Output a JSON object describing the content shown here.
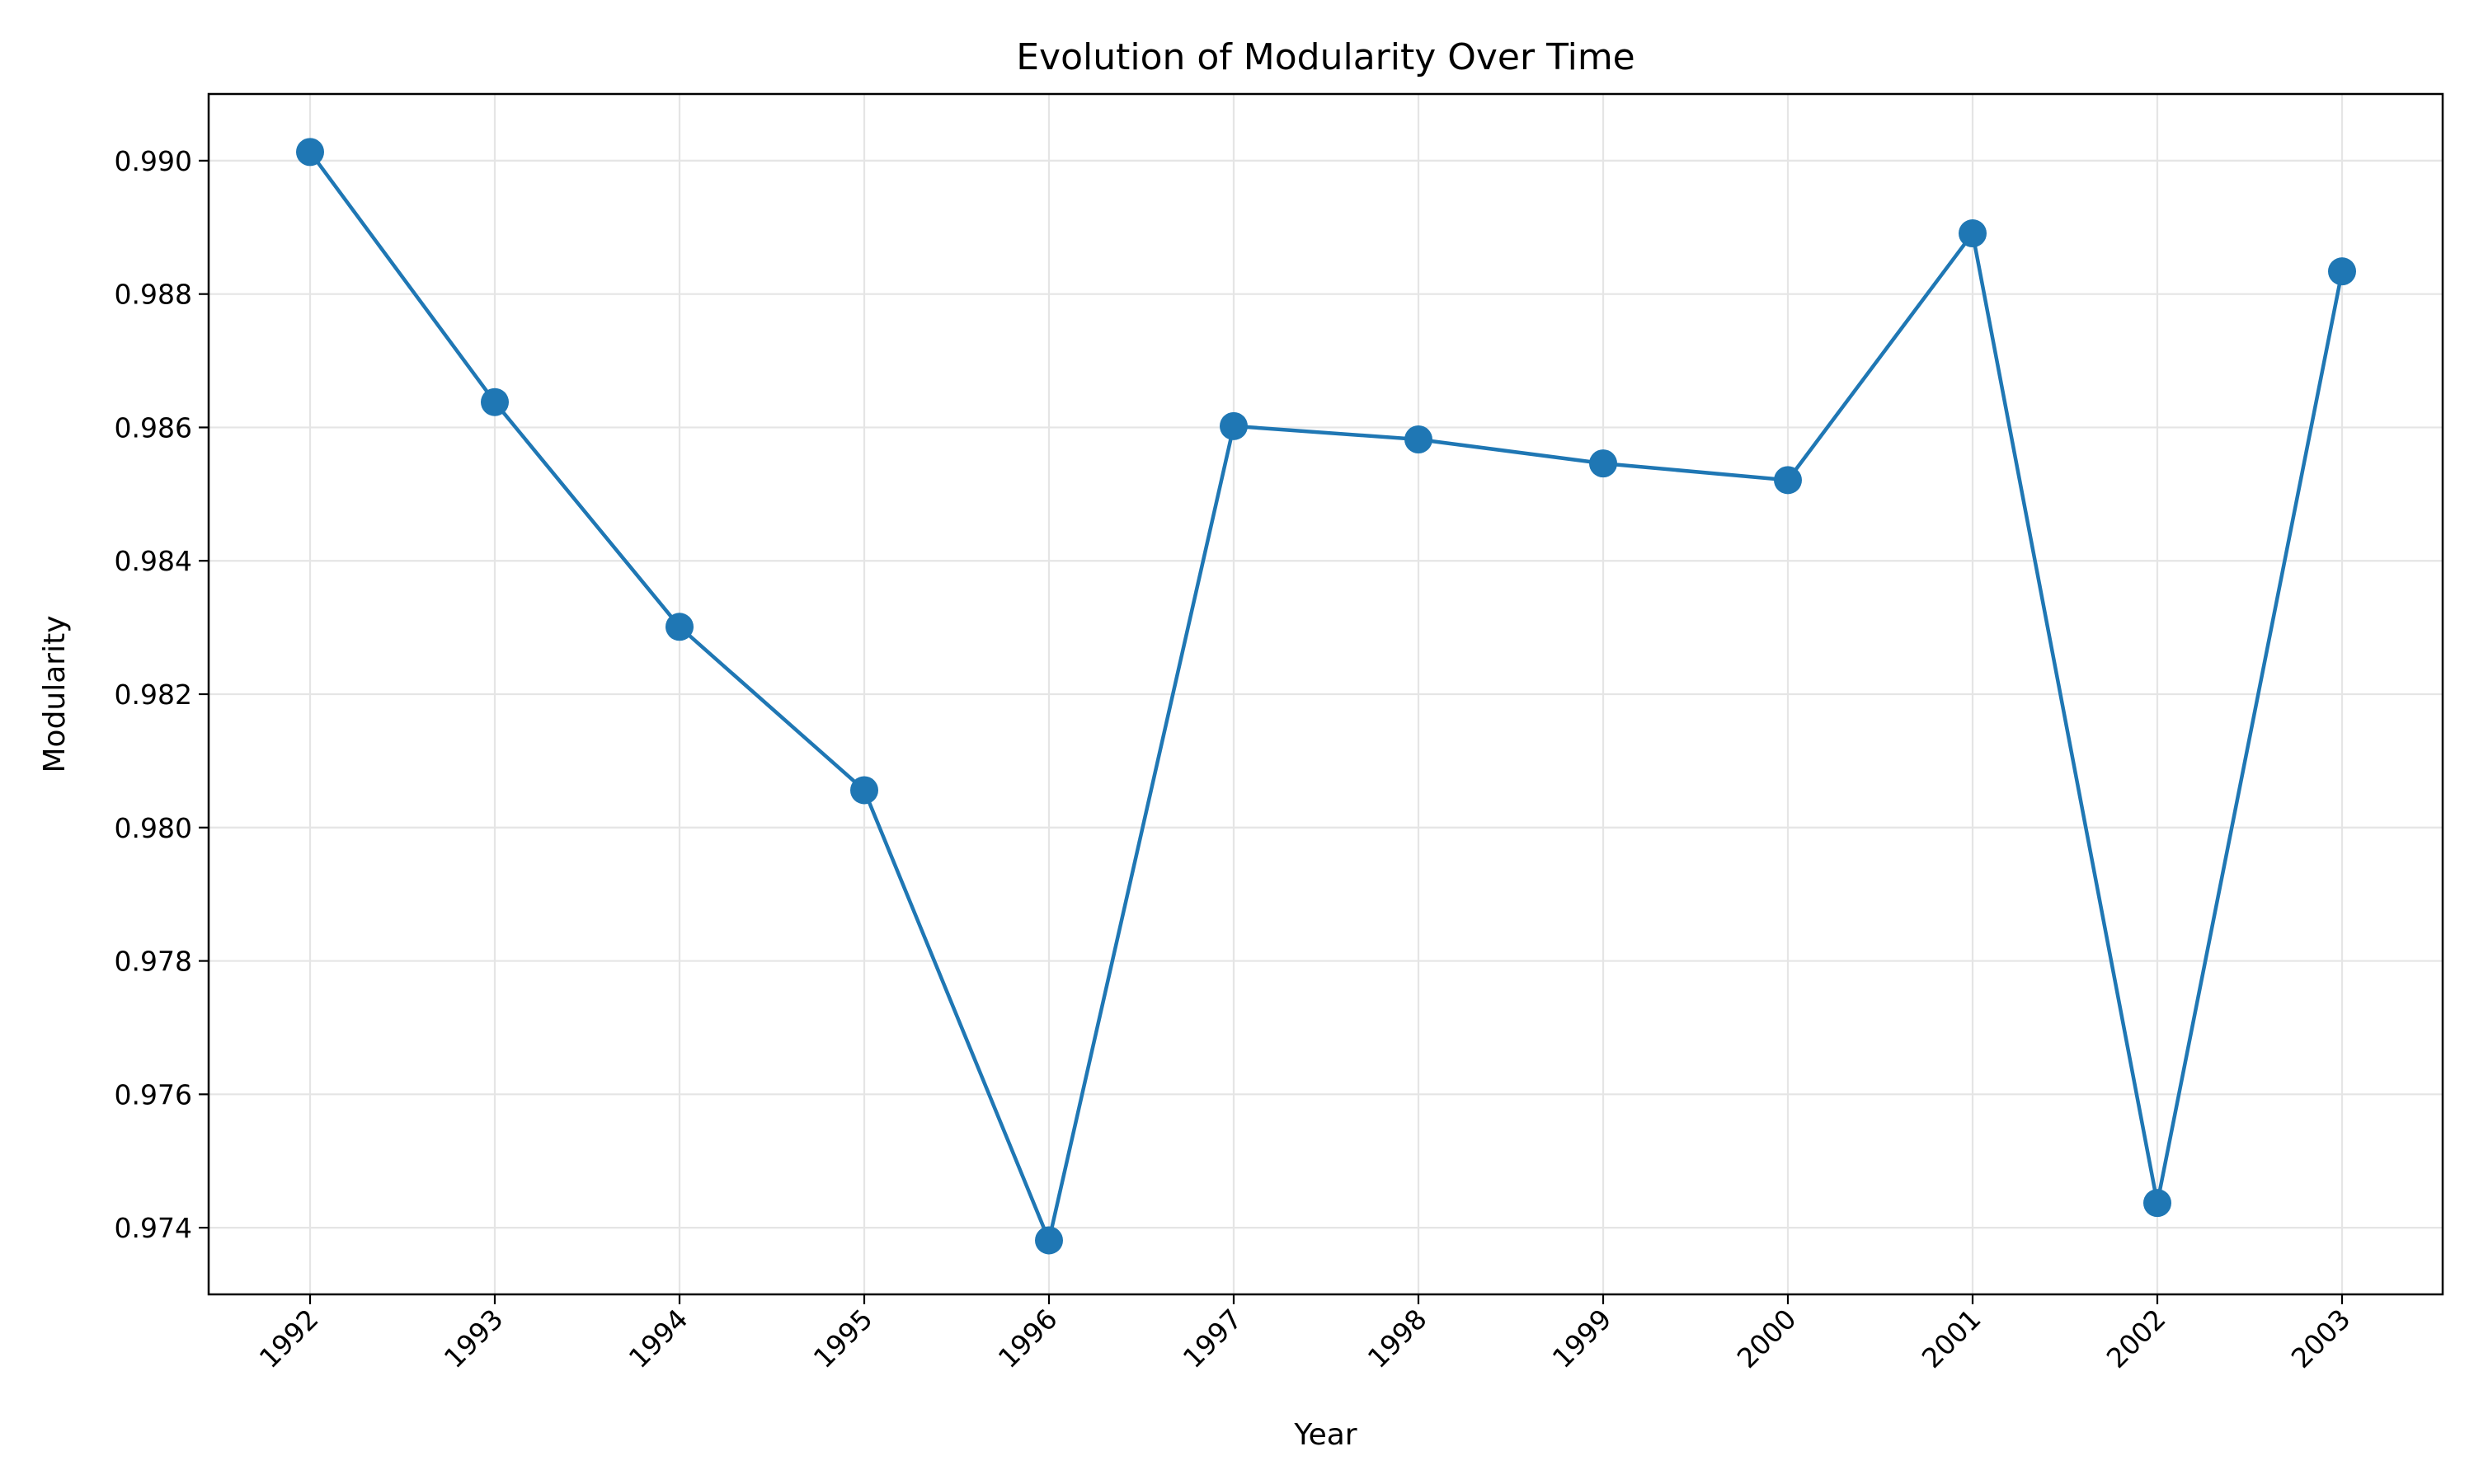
{
  "chart_data": {
    "type": "line",
    "title": "Evolution of Modularity Over Time",
    "xlabel": "Year",
    "ylabel": "Modularity",
    "categories": [
      "1992",
      "1993",
      "1994",
      "1995",
      "1996",
      "1997",
      "1998",
      "1999",
      "2000",
      "2001",
      "2002",
      "2003"
    ],
    "series": [
      {
        "values": [
          0.99013,
          0.98638,
          0.98301,
          0.98056,
          0.97381,
          0.98602,
          0.98582,
          0.98546,
          0.98521,
          0.98891,
          0.97437,
          0.98834
        ],
        "color": "#1f77b4",
        "marker": "circle"
      }
    ],
    "ylim": [
      0.973,
      0.991
    ],
    "yticks": [
      "0.974",
      "0.976",
      "0.978",
      "0.980",
      "0.982",
      "0.984",
      "0.986",
      "0.988",
      "0.990"
    ],
    "grid": true,
    "legend": "none",
    "x_tick_rotation": "45 degrees"
  }
}
